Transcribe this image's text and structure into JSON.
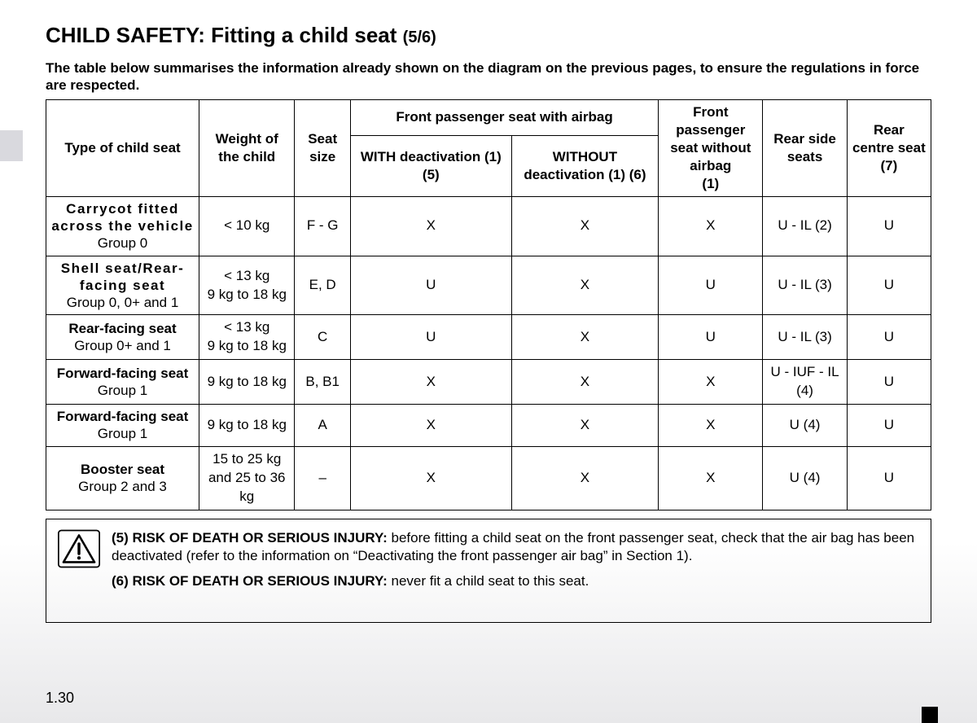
{
  "title_main": "CHILD SAFETY: Fitting a child seat ",
  "title_pageref": "(5/6)",
  "intro": "The table below summarises the information already shown on the diagram on the previous pages, to ensure the regulations in force are respected.",
  "page_number": "1.30",
  "table": {
    "col_widths_pct": [
      17.3,
      10.8,
      6.3,
      18.2,
      16.6,
      11.8,
      9.5,
      9.5
    ],
    "headers": {
      "type": "Type of child seat",
      "weight": "Weight of the child",
      "size": "Seat size",
      "front_group": "Front passenger seat with airbag",
      "front_with": "WITH deactivation (1) (5)",
      "front_without": "WITHOUT deactivation (1) (6)",
      "front_no_airbag": "Front passenger seat without airbag",
      "front_no_airbag_note": "(1)",
      "rear_side": "Rear side seats",
      "rear_centre": "Rear centre seat",
      "rear_centre_note": "(7)"
    },
    "rows": [
      {
        "type_name": "Carrycot fitted across the vehicle",
        "type_name_spaced": true,
        "type_group": "Group 0",
        "weight": "< 10 kg",
        "size": "F - G",
        "with_deact": "X",
        "without_deact": "X",
        "no_airbag": "X",
        "rear_side": "U - IL (2)",
        "rear_centre": "U"
      },
      {
        "type_name": "Shell seat/Rear-facing seat",
        "type_name_spaced": true,
        "type_group": "Group 0, 0+ and 1",
        "weight": "< 13 kg\n9 kg to 18 kg",
        "size": "E, D",
        "with_deact": "U",
        "without_deact": "X",
        "no_airbag": "U",
        "rear_side": "U - IL (3)",
        "rear_centre": "U"
      },
      {
        "type_name": "Rear-facing seat",
        "type_name_spaced": false,
        "type_group": "Group  0+ and 1",
        "weight": "< 13 kg\n9 kg to 18 kg",
        "size": "C",
        "with_deact": "U",
        "without_deact": "X",
        "no_airbag": "U",
        "rear_side": "U - IL (3)",
        "rear_centre": "U"
      },
      {
        "type_name": "Forward-facing seat",
        "type_name_spaced": false,
        "type_group": "Group 1",
        "weight": "9 kg to 18 kg",
        "size": "B, B1",
        "with_deact": "X",
        "without_deact": "X",
        "no_airbag": "X",
        "rear_side": "U - IUF - IL\n(4)",
        "rear_centre": "U"
      },
      {
        "type_name": "Forward-facing seat",
        "type_name_spaced": false,
        "type_group": "Group 1",
        "weight": "9 kg to 18 kg",
        "size": "A",
        "with_deact": "X",
        "without_deact": "X",
        "no_airbag": "X",
        "rear_side": "U (4)",
        "rear_centre": "U"
      },
      {
        "type_name": "Booster seat",
        "type_name_spaced": false,
        "type_group": "Group 2 and 3",
        "weight": "15 to 25 kg and 25 to 36 kg",
        "size": "–",
        "with_deact": "X",
        "without_deact": "X",
        "no_airbag": "X",
        "rear_side": "U (4)",
        "rear_centre": "U"
      }
    ]
  },
  "warning": {
    "note5_bold": "(5) RISK OF DEATH OR SERIOUS INJURY:",
    "note5_text": " before fitting a child seat on the front passenger seat, check that the air bag has been deactivated (refer to the information on “Deactivating the front passenger air bag” in Section 1).",
    "note6_bold": "(6) RISK OF DEATH OR SERIOUS INJURY:",
    "note6_text": " never fit a child seat to this seat."
  }
}
